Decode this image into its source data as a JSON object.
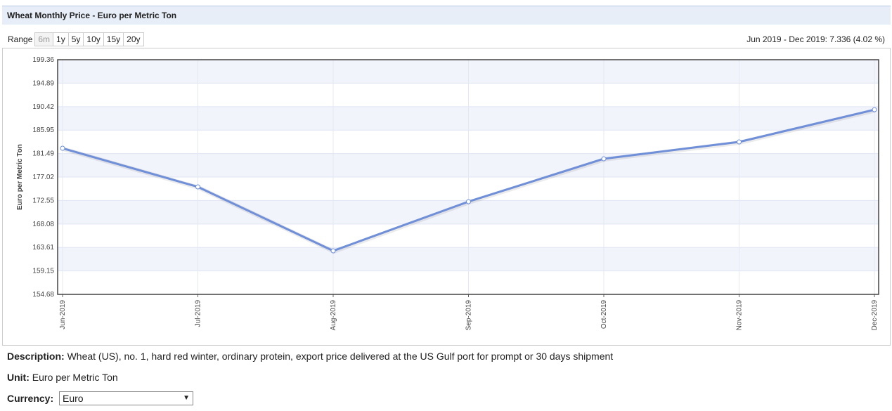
{
  "header": {
    "title": "Wheat Monthly Price - Euro per Metric Ton"
  },
  "range": {
    "label": "Range",
    "options": [
      "6m",
      "1y",
      "5y",
      "10y",
      "15y",
      "20y"
    ]
  },
  "summary": "Jun 2019 - Dec 2019: 7.336 (4.02 %)",
  "chart_data": {
    "type": "line",
    "y_label": "Euro per Metric Ton",
    "categories": [
      "Jun-2019",
      "Jul-2019",
      "Aug-2019",
      "Sep-2019",
      "Oct-2019",
      "Nov-2019",
      "Dec-2019"
    ],
    "values": [
      182.5,
      175.15,
      162.97,
      172.34,
      180.5,
      183.71,
      189.84
    ],
    "color": "#6f8fd8",
    "ylim": [
      154.68,
      199.36
    ],
    "yticks": [
      154.68,
      159.15,
      163.61,
      168.08,
      172.55,
      177.02,
      181.49,
      185.95,
      190.42,
      194.89,
      199.36
    ],
    "grid": true
  },
  "description": {
    "label": "Description:",
    "text": "Wheat (US), no. 1, hard red winter, ordinary protein, export price delivered at the US Gulf port for prompt or 30 days shipment"
  },
  "unit": {
    "label": "Unit:",
    "text": "Euro per Metric Ton"
  },
  "currency": {
    "label": "Currency:",
    "selected": "Euro"
  }
}
